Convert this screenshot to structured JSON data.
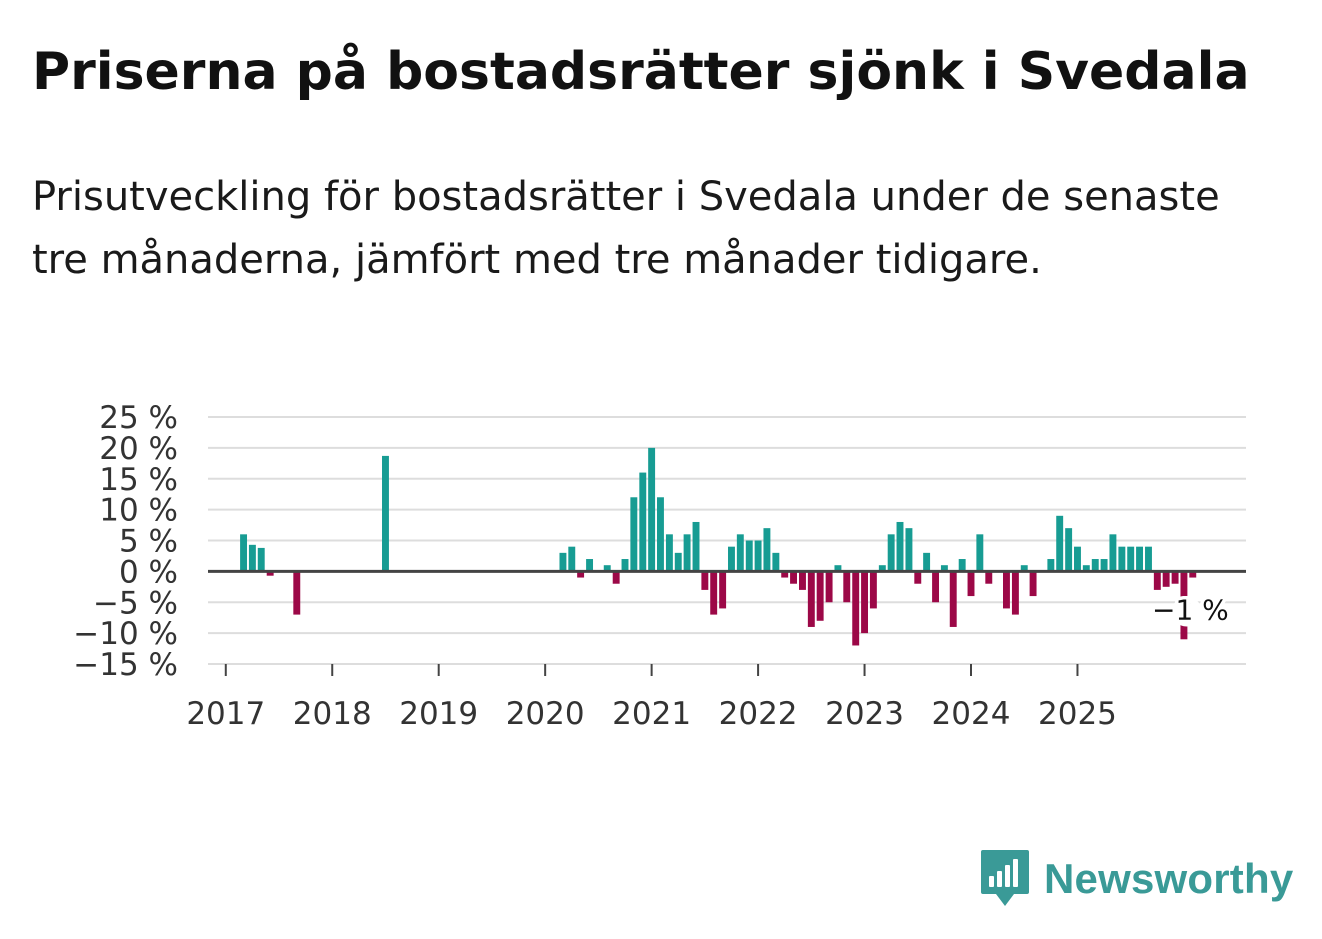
{
  "title": "Priserna på bostadsrätter sjönk i Svedala",
  "subtitle": "Prisutveckling för bostadsrätter i Svedala under de senaste tre månaderna, jämfört med tre månader tidigare.",
  "brand": {
    "name": "Newsworthy",
    "color": "#3a9a97"
  },
  "colors": {
    "positive": "#179c93",
    "negative": "#9c0847",
    "grid": "#dddddd",
    "zero": "#444444"
  },
  "chart_data": {
    "type": "bar",
    "title": "Priserna på bostadsrätter sjönk i Svedala",
    "xlabel": "",
    "ylabel": "",
    "ylim": [
      -15,
      25
    ],
    "xlim": [
      2016.833,
      2026.583
    ],
    "y_ticks": [
      25,
      20,
      15,
      10,
      5,
      0,
      -5,
      -10,
      -15
    ],
    "y_tick_labels": [
      "25 %",
      "20 %",
      "15 %",
      "10 %",
      "5 %",
      "0 %",
      "−5 %",
      "−10 %",
      "−15 %"
    ],
    "x_ticks": [
      2017,
      2018,
      2019,
      2020,
      2021,
      2022,
      2023,
      2024,
      2025
    ],
    "x_tick_labels": [
      "2017",
      "2018",
      "2019",
      "2020",
      "2021",
      "2022",
      "2023",
      "2024",
      "2025"
    ],
    "end_label": "−1 %",
    "series": [
      {
        "name": "Prisutveckling",
        "points": [
          {
            "x": 2017.167,
            "y": 6
          },
          {
            "x": 2017.25,
            "y": 4.3
          },
          {
            "x": 2017.333,
            "y": 3.8
          },
          {
            "x": 2017.417,
            "y": -0.7
          },
          {
            "x": 2017.667,
            "y": -7
          },
          {
            "x": 2018.5,
            "y": 18.7
          },
          {
            "x": 2020.167,
            "y": 3
          },
          {
            "x": 2020.25,
            "y": 4
          },
          {
            "x": 2020.333,
            "y": -1
          },
          {
            "x": 2020.417,
            "y": 2
          },
          {
            "x": 2020.583,
            "y": 1
          },
          {
            "x": 2020.667,
            "y": -2
          },
          {
            "x": 2020.75,
            "y": 2
          },
          {
            "x": 2020.833,
            "y": 12
          },
          {
            "x": 2020.917,
            "y": 16
          },
          {
            "x": 2021.0,
            "y": 20
          },
          {
            "x": 2021.083,
            "y": 12
          },
          {
            "x": 2021.167,
            "y": 6
          },
          {
            "x": 2021.25,
            "y": 3
          },
          {
            "x": 2021.333,
            "y": 6
          },
          {
            "x": 2021.417,
            "y": 8
          },
          {
            "x": 2021.5,
            "y": -3
          },
          {
            "x": 2021.583,
            "y": -7
          },
          {
            "x": 2021.667,
            "y": -6
          },
          {
            "x": 2021.75,
            "y": 4
          },
          {
            "x": 2021.833,
            "y": 6
          },
          {
            "x": 2021.917,
            "y": 5
          },
          {
            "x": 2022.0,
            "y": 5
          },
          {
            "x": 2022.083,
            "y": 7
          },
          {
            "x": 2022.167,
            "y": 3
          },
          {
            "x": 2022.25,
            "y": -1
          },
          {
            "x": 2022.333,
            "y": -2
          },
          {
            "x": 2022.417,
            "y": -3
          },
          {
            "x": 2022.5,
            "y": -9
          },
          {
            "x": 2022.583,
            "y": -8
          },
          {
            "x": 2022.667,
            "y": -5
          },
          {
            "x": 2022.75,
            "y": 1
          },
          {
            "x": 2022.833,
            "y": -5
          },
          {
            "x": 2022.917,
            "y": -12
          },
          {
            "x": 2023.0,
            "y": -10
          },
          {
            "x": 2023.083,
            "y": -6
          },
          {
            "x": 2023.167,
            "y": 1
          },
          {
            "x": 2023.25,
            "y": 6
          },
          {
            "x": 2023.333,
            "y": 8
          },
          {
            "x": 2023.417,
            "y": 7
          },
          {
            "x": 2023.5,
            "y": -2
          },
          {
            "x": 2023.583,
            "y": 3
          },
          {
            "x": 2023.667,
            "y": -5
          },
          {
            "x": 2023.75,
            "y": 1
          },
          {
            "x": 2023.833,
            "y": -9
          },
          {
            "x": 2023.917,
            "y": 2
          },
          {
            "x": 2024.0,
            "y": -4
          },
          {
            "x": 2024.083,
            "y": 6
          },
          {
            "x": 2024.167,
            "y": -2
          },
          {
            "x": 2024.333,
            "y": -6
          },
          {
            "x": 2024.417,
            "y": -7
          },
          {
            "x": 2024.5,
            "y": 1
          },
          {
            "x": 2024.583,
            "y": -4
          },
          {
            "x": 2024.75,
            "y": 2
          },
          {
            "x": 2024.833,
            "y": 9
          },
          {
            "x": 2024.917,
            "y": 7
          },
          {
            "x": 2025.0,
            "y": 4
          },
          {
            "x": 2025.083,
            "y": 1
          },
          {
            "x": 2025.167,
            "y": 2
          },
          {
            "x": 2025.25,
            "y": 2
          },
          {
            "x": 2025.333,
            "y": 6
          },
          {
            "x": 2025.417,
            "y": 4
          },
          {
            "x": 2025.5,
            "y": 4
          },
          {
            "x": 2025.583,
            "y": 4
          },
          {
            "x": 2025.667,
            "y": 4
          },
          {
            "x": 2025.75,
            "y": -3
          },
          {
            "x": 2025.833,
            "y": -2.5
          },
          {
            "x": 2025.917,
            "y": -2
          },
          {
            "x": 2026.0,
            "y": -11
          },
          {
            "x": 2026.083,
            "y": -1
          }
        ]
      }
    ]
  }
}
